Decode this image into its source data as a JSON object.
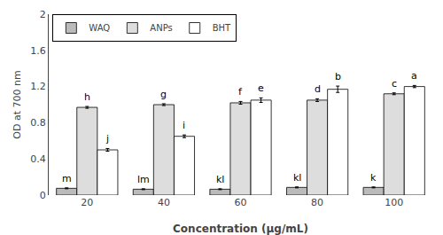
{
  "chart_data": {
    "type": "bar",
    "categories": [
      "20",
      "40",
      "60",
      "80",
      "100"
    ],
    "xlabel": "Concentration (μg/mL)",
    "ylabel": "OD at 700 nm",
    "ylim": [
      0,
      2.0
    ],
    "yticks": [
      0,
      0.4,
      0.8,
      1.2,
      1.6,
      2
    ],
    "grid": false,
    "legend": "upper left",
    "series": [
      {
        "name": "WAQ",
        "color": "#bbbbbb",
        "values": [
          0.075,
          0.065,
          0.065,
          0.085,
          0.085
        ],
        "errors": [
          0.005,
          0.005,
          0.005,
          0.005,
          0.005
        ],
        "annotations": [
          "m",
          "lm",
          "kl",
          "kl",
          "k"
        ]
      },
      {
        "name": "ANPs",
        "color": "#dddddd",
        "values": [
          0.97,
          1.0,
          1.02,
          1.05,
          1.12
        ],
        "errors": [
          0.01,
          0.01,
          0.015,
          0.015,
          0.01
        ],
        "annotations": [
          "h",
          "g",
          "f",
          "d",
          "c"
        ]
      },
      {
        "name": "BHT",
        "color": "#ffffff",
        "values": [
          0.5,
          0.65,
          1.05,
          1.17,
          1.2
        ],
        "errors": [
          0.015,
          0.015,
          0.025,
          0.035,
          0.012
        ],
        "annotations": [
          "j",
          "i",
          "e",
          "b",
          "a"
        ]
      }
    ]
  }
}
